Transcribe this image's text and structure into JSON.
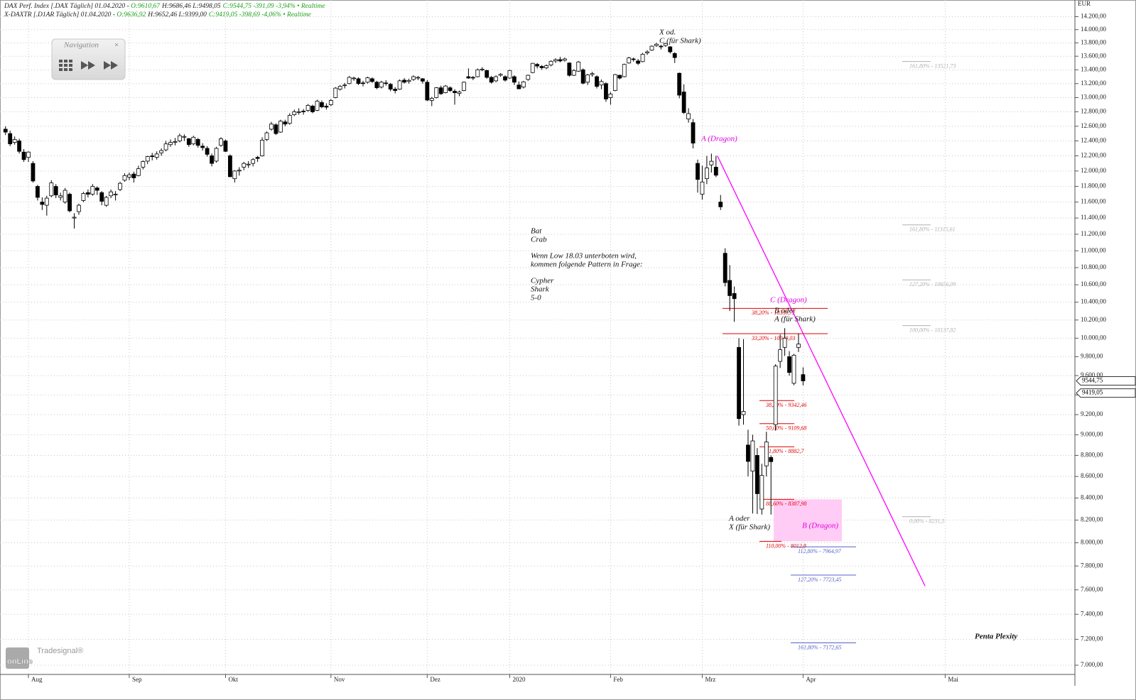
{
  "header": {
    "line1": {
      "name": "DAX Perf. Index [.DAX Täglich] 01.04.2020 - ",
      "open": "O:9610,67",
      "hl": "H:9686,46 L:9498,05",
      "rest": "C:9544,75 -391,09 -3,94% • Realtime"
    },
    "line2": {
      "name": "X-DAXTR [.D1AR Täglich] 01.04.2020 - ",
      "open": "O:9636,92",
      "hl": "H:9652,46 L:9399,00",
      "rest": "C:9419,05 -398,69 -4,06% • Realtime"
    }
  },
  "navigation": {
    "title": "Navigation",
    "close": "×"
  },
  "logo": {
    "brand": "Tradesignal®",
    "product": "onLine"
  },
  "chart_data": {
    "type": "candlestick",
    "log_scale": true,
    "grid": true,
    "up_color": "#ffffff",
    "down_color": "#000000",
    "y_unit": "EUR",
    "xlim": [
      -1.2,
      233.3
    ],
    "ylim": [
      6930,
      14460
    ],
    "xticks": [
      {
        "value": 5,
        "label": "Aug"
      },
      {
        "value": 27,
        "label": "Sep"
      },
      {
        "value": 48,
        "label": "Okt"
      },
      {
        "value": 71,
        "label": "Nov"
      },
      {
        "value": 92,
        "label": "Dez"
      },
      {
        "value": 110,
        "label": "2020"
      },
      {
        "value": 132,
        "label": "Feb"
      },
      {
        "value": 152,
        "label": "Mrz"
      },
      {
        "value": 174,
        "label": "Apr"
      },
      {
        "value": 205,
        "label": "Mai"
      }
    ],
    "yticks": [
      {
        "value": 7000,
        "label": "7.000,00"
      },
      {
        "value": 7200,
        "label": "7.200,00"
      },
      {
        "value": 7400,
        "label": "7.400,00"
      },
      {
        "value": 7600,
        "label": "7.600,00"
      },
      {
        "value": 7800,
        "label": "7.800,00"
      },
      {
        "value": 8000,
        "label": "8.000,00"
      },
      {
        "value": 8200,
        "label": "8.200,00"
      },
      {
        "value": 8400,
        "label": "8.400,00"
      },
      {
        "value": 8600,
        "label": "8.600,00"
      },
      {
        "value": 8800,
        "label": "8.800,00"
      },
      {
        "value": 9000,
        "label": "9.000,00"
      },
      {
        "value": 9200,
        "label": "9.200,00"
      },
      {
        "value": 9400,
        "label": "9.400,00"
      },
      {
        "value": 9600,
        "label": "9.600,00"
      },
      {
        "value": 9800,
        "label": "9.800,00"
      },
      {
        "value": 10000,
        "label": "10.000,00"
      },
      {
        "value": 10200,
        "label": "10.200,00"
      },
      {
        "value": 10400,
        "label": "10.400,00"
      },
      {
        "value": 10600,
        "label": "10.600,00"
      },
      {
        "value": 10800,
        "label": "10.800,00"
      },
      {
        "value": 11000,
        "label": "11.000,00"
      },
      {
        "value": 11200,
        "label": "11.200,00"
      },
      {
        "value": 11400,
        "label": "11.400,00"
      },
      {
        "value": 11600,
        "label": "11.600,00"
      },
      {
        "value": 11800,
        "label": "11.800,00"
      },
      {
        "value": 12000,
        "label": "12.000,00"
      },
      {
        "value": 12200,
        "label": "12.200,00"
      },
      {
        "value": 12400,
        "label": "12.400,00"
      },
      {
        "value": 12600,
        "label": "12.600,00"
      },
      {
        "value": 12800,
        "label": "12.800,00"
      },
      {
        "value": 13000,
        "label": "13.000,00"
      },
      {
        "value": 13200,
        "label": "13.200,00"
      },
      {
        "value": 13400,
        "label": "13.400,00"
      },
      {
        "value": 13600,
        "label": "13.600,00"
      },
      {
        "value": 13800,
        "label": "13.800,00"
      },
      {
        "value": 14000,
        "label": "14.000,00"
      },
      {
        "value": 14200,
        "label": "14.200,00"
      }
    ],
    "candles": [
      [
        12560,
        12600,
        12480,
        12520
      ],
      [
        12500,
        12540,
        12330,
        12360
      ],
      [
        12380,
        12460,
        12350,
        12420
      ],
      [
        12400,
        12430,
        12230,
        12260
      ],
      [
        12250,
        12290,
        12120,
        12150
      ],
      [
        12180,
        12260,
        12120,
        12250
      ],
      [
        12100,
        12130,
        11850,
        11870
      ],
      [
        11800,
        11820,
        11620,
        11660
      ],
      [
        11600,
        11660,
        11500,
        11570
      ],
      [
        11560,
        11680,
        11430,
        11650
      ],
      [
        11680,
        11880,
        11660,
        11845
      ],
      [
        11800,
        11830,
        11650,
        11690
      ],
      [
        11660,
        11720,
        11620,
        11680
      ],
      [
        11600,
        11780,
        11580,
        11750
      ],
      [
        11700,
        11720,
        11470,
        11490
      ],
      [
        11400,
        11460,
        11270,
        11410
      ],
      [
        11480,
        11580,
        11440,
        11560
      ],
      [
        11620,
        11730,
        11600,
        11710
      ],
      [
        11720,
        11760,
        11660,
        11700
      ],
      [
        11700,
        11830,
        11680,
        11800
      ],
      [
        11780,
        11800,
        11690,
        11750
      ],
      [
        11720,
        11740,
        11560,
        11610
      ],
      [
        11560,
        11680,
        11540,
        11660
      ],
      [
        11680,
        11760,
        11650,
        11730
      ],
      [
        11700,
        11740,
        11620,
        11700
      ],
      [
        11760,
        11860,
        11740,
        11840
      ],
      [
        11880,
        11970,
        11860,
        11940
      ],
      [
        11920,
        11980,
        11880,
        11950
      ],
      [
        11960,
        11990,
        11850,
        11910
      ],
      [
        11940,
        12070,
        11930,
        12030
      ],
      [
        12050,
        12140,
        12020,
        12125
      ],
      [
        12130,
        12200,
        12090,
        12190
      ],
      [
        12200,
        12240,
        12140,
        12190
      ],
      [
        12180,
        12260,
        12150,
        12225
      ],
      [
        12240,
        12300,
        12200,
        12270
      ],
      [
        12280,
        12400,
        12260,
        12360
      ],
      [
        12350,
        12420,
        12320,
        12380
      ],
      [
        12380,
        12440,
        12340,
        12390
      ],
      [
        12400,
        12500,
        12380,
        12470
      ],
      [
        12450,
        12490,
        12400,
        12460
      ],
      [
        12430,
        12440,
        12320,
        12350
      ],
      [
        12360,
        12470,
        12340,
        12450
      ],
      [
        12420,
        12440,
        12310,
        12340
      ],
      [
        12330,
        12370,
        12270,
        12310
      ],
      [
        12300,
        12330,
        12190,
        12220
      ],
      [
        12200,
        12230,
        12060,
        12100
      ],
      [
        12130,
        12320,
        12110,
        12300
      ],
      [
        12340,
        12450,
        12320,
        12430
      ],
      [
        12400,
        12420,
        12250,
        12260
      ],
      [
        12200,
        12220,
        11920,
        11925
      ],
      [
        11900,
        12010,
        11850,
        12000
      ],
      [
        12000,
        12050,
        11940,
        12010
      ],
      [
        12050,
        12120,
        12010,
        12100
      ],
      [
        12080,
        12130,
        12040,
        12090
      ],
      [
        12100,
        12170,
        12060,
        12150
      ],
      [
        12180,
        12200,
        12120,
        12165
      ],
      [
        12200,
        12450,
        12190,
        12410
      ],
      [
        12420,
        12530,
        12400,
        12510
      ],
      [
        12560,
        12660,
        12540,
        12630
      ],
      [
        12620,
        12640,
        12480,
        12500
      ],
      [
        12520,
        12690,
        12510,
        12670
      ],
      [
        12660,
        12690,
        12600,
        12630
      ],
      [
        12640,
        12780,
        12620,
        12750
      ],
      [
        12760,
        12830,
        12740,
        12800
      ],
      [
        12790,
        12850,
        12760,
        12800
      ],
      [
        12810,
        12840,
        12760,
        12800
      ],
      [
        12820,
        12910,
        12800,
        12890
      ],
      [
        12880,
        12900,
        12780,
        12800
      ],
      [
        12820,
        12970,
        12810,
        12950
      ],
      [
        12930,
        12960,
        12850,
        12870
      ],
      [
        12880,
        12920,
        12830,
        12865
      ],
      [
        12900,
        12980,
        12880,
        12960
      ],
      [
        13000,
        13150,
        12990,
        13135
      ],
      [
        13120,
        13180,
        13100,
        13160
      ],
      [
        13170,
        13210,
        13130,
        13180
      ],
      [
        13200,
        13310,
        13190,
        13290
      ],
      [
        13280,
        13300,
        13240,
        13280
      ],
      [
        13270,
        13290,
        13180,
        13200
      ],
      [
        13210,
        13240,
        13160,
        13200
      ],
      [
        13220,
        13300,
        13200,
        13285
      ],
      [
        13270,
        13290,
        13210,
        13230
      ],
      [
        13220,
        13240,
        13120,
        13140
      ],
      [
        13150,
        13240,
        13130,
        13220
      ],
      [
        13210,
        13250,
        13170,
        13200
      ],
      [
        13190,
        13210,
        13090,
        13120
      ],
      [
        13120,
        13150,
        13060,
        13100
      ],
      [
        13120,
        13260,
        13110,
        13240
      ],
      [
        13250,
        13280,
        13200,
        13220
      ],
      [
        13230,
        13270,
        13200,
        13245
      ],
      [
        13260,
        13320,
        13240,
        13300
      ],
      [
        13280,
        13310,
        13250,
        13290
      ],
      [
        13270,
        13280,
        13200,
        13235
      ],
      [
        13220,
        13250,
        12950,
        12965
      ],
      [
        12960,
        13010,
        12880,
        12990
      ],
      [
        13000,
        13150,
        12990,
        13140
      ],
      [
        13140,
        13170,
        13040,
        13055
      ],
      [
        13070,
        13180,
        13060,
        13165
      ],
      [
        13140,
        13160,
        13080,
        13100
      ],
      [
        13090,
        13120,
        12900,
        13070
      ],
      [
        13060,
        13100,
        13020,
        13080
      ],
      [
        13100,
        13230,
        13090,
        13220
      ],
      [
        13300,
        13420,
        13270,
        13280
      ],
      [
        13290,
        13310,
        13250,
        13280
      ],
      [
        13300,
        13420,
        13290,
        13400
      ],
      [
        13400,
        13440,
        13380,
        13410
      ],
      [
        13390,
        13400,
        13270,
        13290
      ],
      [
        13290,
        13310,
        13200,
        13220
      ],
      [
        13240,
        13320,
        13220,
        13300
      ],
      [
        13320,
        13350,
        13300,
        13335
      ],
      [
        13300,
        13320,
        13230,
        13250
      ],
      [
        13280,
        13400,
        13270,
        13390
      ],
      [
        13300,
        13320,
        13180,
        13220
      ],
      [
        13180,
        13230,
        13120,
        13125
      ],
      [
        13150,
        13240,
        13130,
        13225
      ],
      [
        13260,
        13330,
        13240,
        13320
      ],
      [
        13360,
        13500,
        13350,
        13495
      ],
      [
        13480,
        13500,
        13420,
        13455
      ],
      [
        13450,
        13470,
        13400,
        13430
      ],
      [
        13430,
        13480,
        13410,
        13460
      ],
      [
        13470,
        13540,
        13450,
        13525
      ],
      [
        13530,
        13570,
        13500,
        13550
      ],
      [
        13550,
        13590,
        13510,
        13530
      ],
      [
        13540,
        13580,
        13520,
        13560
      ],
      [
        13500,
        13510,
        13300,
        13320
      ],
      [
        13320,
        13410,
        13310,
        13390
      ],
      [
        13380,
        13530,
        13370,
        13515
      ],
      [
        13400,
        13420,
        13190,
        13205
      ],
      [
        13220,
        13340,
        13180,
        13325
      ],
      [
        13330,
        13370,
        13300,
        13345
      ],
      [
        13300,
        13320,
        13130,
        13160
      ],
      [
        13180,
        13260,
        13120,
        13230
      ],
      [
        13200,
        13220,
        12940,
        12980
      ],
      [
        13000,
        13080,
        12900,
        13050
      ],
      [
        13100,
        13340,
        13090,
        13330
      ],
      [
        13320,
        13330,
        13260,
        13280
      ],
      [
        13300,
        13490,
        13290,
        13480
      ],
      [
        13500,
        13590,
        13490,
        13575
      ],
      [
        13560,
        13580,
        13520,
        13550
      ],
      [
        13530,
        13560,
        13470,
        13495
      ],
      [
        13520,
        13650,
        13510,
        13630
      ],
      [
        13650,
        13690,
        13620,
        13665
      ],
      [
        13690,
        13760,
        13680,
        13750
      ],
      [
        13760,
        13800,
        13740,
        13780
      ],
      [
        13750,
        13770,
        13700,
        13745
      ],
      [
        13760,
        13800,
        13740,
        13790
      ],
      [
        13740,
        13750,
        13640,
        13665
      ],
      [
        13640,
        13660,
        13500,
        13580
      ],
      [
        13350,
        13360,
        12990,
        13035
      ],
      [
        13080,
        13190,
        12770,
        12790
      ],
      [
        12700,
        12850,
        12650,
        12775
      ],
      [
        12650,
        12700,
        12300,
        12370
      ],
      [
        12100,
        12150,
        11720,
        11890
      ],
      [
        11700,
        12070,
        11630,
        11857
      ],
      [
        11900,
        12200,
        11830,
        12040
      ],
      [
        12080,
        12230,
        11980,
        12128
      ],
      [
        12050,
        12200,
        11920,
        11945
      ],
      [
        11600,
        11690,
        11500,
        11540
      ],
      [
        10970,
        11030,
        10580,
        10625
      ],
      [
        10650,
        10830,
        10300,
        10475
      ],
      [
        10500,
        10580,
        10180,
        10440
      ],
      [
        9900,
        10000,
        9090,
        9160
      ],
      [
        9200,
        9990,
        9100,
        9232
      ],
      [
        8900,
        9050,
        8600,
        8742
      ],
      [
        8650,
        9000,
        8260,
        8940
      ],
      [
        8800,
        8870,
        8255,
        8440
      ],
      [
        8300,
        8720,
        8250,
        8610
      ],
      [
        8700,
        9030,
        8600,
        8930
      ],
      [
        8780,
        8800,
        8250,
        8740
      ],
      [
        9100,
        9720,
        9040,
        9700
      ],
      [
        9750,
        10040,
        9680,
        9875
      ],
      [
        9900,
        10110,
        9810,
        10000
      ],
      [
        9800,
        9860,
        9600,
        9633
      ],
      [
        9520,
        9830,
        9500,
        9816
      ],
      [
        9900,
        10050,
        9850,
        9936
      ],
      [
        9610.67,
        9686.46,
        9498.05,
        9544.75
      ]
    ],
    "last_prices": [
      {
        "value": 9544.75,
        "label": "9544,75"
      },
      {
        "value": 9419.05,
        "label": "9419,05"
      }
    ],
    "trendline": {
      "color": "#ff00ff",
      "x": [
        155.3,
        200.6
      ],
      "y": [
        12200,
        7632
      ]
    },
    "zone_color": "#ffccf5",
    "fib_red": {
      "color": "#e00000",
      "levels": [
        {
          "value": 10330.72,
          "label": "38,20% - 10330,72"
        },
        {
          "value": 10049.03,
          "label": "33,20% - 10049,03"
        },
        {
          "value": 9342.46,
          "label": "38,20% - 9342,46"
        },
        {
          "value": 9109.68,
          "label": "50,00% - 9109,68"
        },
        {
          "value": 8882.7,
          "label": "61,80% - 8882,7"
        },
        {
          "value": 8387.98,
          "label": "88,60% - 8387,98"
        },
        {
          "value": 8012.8,
          "label": "110,00% - 8012,8"
        }
      ]
    },
    "fib_blue": {
      "color": "#5560c8",
      "levels": [
        {
          "value": 7964.97,
          "label": "112,80% - 7964,97"
        },
        {
          "value": 7723.45,
          "label": "127,20% - 7723,45"
        },
        {
          "value": 7172.65,
          "label": "161,80% - 7172,65"
        }
      ]
    },
    "fib_gray": {
      "color": "#b0b0b0",
      "levels": [
        {
          "value": 13521.73,
          "label": "161,80% - 13521,73"
        },
        {
          "value": 11315.61,
          "label": "161,80% - 11315,61"
        },
        {
          "value": 10656.09,
          "label": "127,20% - 10656,09"
        },
        {
          "value": 10137.82,
          "label": "100,00% - 10137,82"
        },
        {
          "value": 8231.5,
          "label": "0,00% - 8231,5"
        }
      ]
    },
    "annotations": [
      "X od.",
      "C (für Shark)",
      "A (Dragon)",
      "Bat",
      "Crab",
      "Wenn Low 18.03 unterboten wird,",
      "kommen folgende Pattern in Frage:",
      "Cypher",
      "Shark",
      "5-0",
      "C (Dragon)",
      "B oder",
      "A (für Shark)",
      "A oder",
      "X (für Shark)",
      "B (Dragon)",
      "Penta Plexity"
    ]
  }
}
